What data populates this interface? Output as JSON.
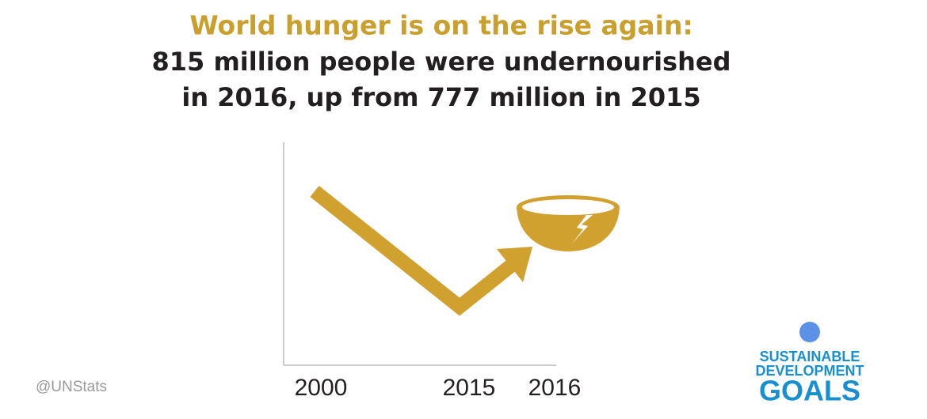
{
  "header": {
    "title": "World hunger is on the rise again:",
    "lines": [
      "815 million people were undernourished",
      "in 2016, up from 777 million in 2015"
    ]
  },
  "axis": {
    "labels": [
      "2000",
      "2015",
      "2016"
    ]
  },
  "credit": "@UNStats",
  "logo": {
    "lines": [
      "SUSTAINABLE",
      "DEVELOPMENT",
      "GOALS"
    ]
  }
}
